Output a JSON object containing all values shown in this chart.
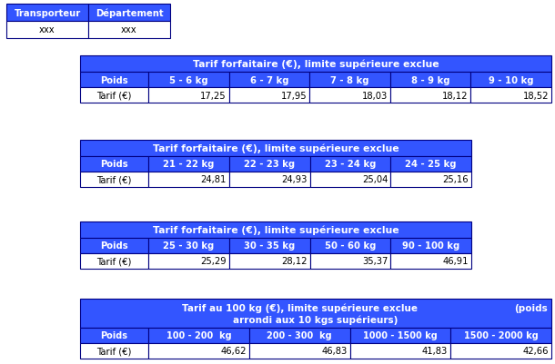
{
  "blue": "#3355FF",
  "white": "#FFFFFF",
  "black": "#000000",
  "border": "#000080",
  "table1_header": "Tarif forfaitaire (€), limite supérieure exclue",
  "table1_cols": [
    "Poids",
    "5 - 6 kg",
    "6 - 7 kg",
    "7 - 8 kg",
    "8 - 9 kg",
    "9 - 10 kg"
  ],
  "table1_row": [
    "Tarif (€)",
    "17,25",
    "17,95",
    "18,03",
    "18,12",
    "18,52"
  ],
  "table2_header": "Tarif forfaitaire (€), limite supérieure exclue",
  "table2_cols": [
    "Poids",
    "21 - 22 kg",
    "22 - 23 kg",
    "23 - 24 kg",
    "24 - 25 kg"
  ],
  "table2_row": [
    "Tarif (€)",
    "24,81",
    "24,93",
    "25,04",
    "25,16"
  ],
  "table3_header": "Tarif forfaitaire (€), limite supérieure exclue",
  "table3_cols": [
    "Poids",
    "25 - 30 kg",
    "30 - 35 kg",
    "50 - 60 kg",
    "90 - 100 kg"
  ],
  "table3_row": [
    "Tarif (€)",
    "25,29",
    "28,12",
    "35,37",
    "46,91"
  ],
  "table4_header_line1": "Tarif au 100 kg (€), limite supérieure exclue",
  "table4_header_line2": "arrondi aux 10 kgs supérieurs)",
  "table4_header_right": "(poids",
  "table4_cols": [
    "Poids",
    "100 - 200  kg",
    "200 - 300  kg",
    "1000 - 1500 kg",
    "1500 - 2000 kg"
  ],
  "table4_row": [
    "Tarif (€)",
    "46,62",
    "46,83",
    "41,83",
    "42,66"
  ],
  "info_headers": [
    "Transporteur",
    "Département"
  ],
  "info_row": [
    "xxx",
    "xxx"
  ]
}
